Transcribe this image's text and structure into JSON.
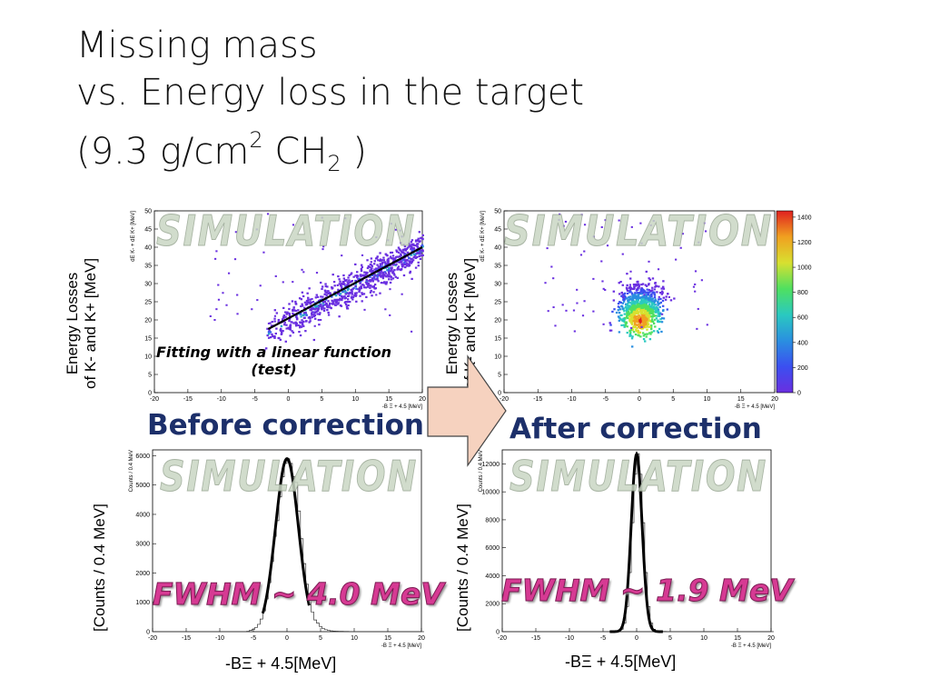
{
  "title": {
    "line1": "Missing mass",
    "line2": "vs. Energy loss in the target",
    "line3_pre": "(9.3 g/cm",
    "line3_sup": "2",
    "line3_mid": " CH",
    "line3_sub": "2",
    "line3_post": " )"
  },
  "labels": {
    "energy_losses_line1": "Energy Losses",
    "energy_losses_line2": "of K- and K+ [MeV]",
    "counts": "[Counts / 0.4 MeV]",
    "before": "Before correction",
    "after": "After correction",
    "fit_line1": "Fitting with a linear function",
    "fit_line2": "(test)",
    "fwhm_before": "FWHM ~ 4.0 MeV",
    "fwhm_after": "FWHM ~ 1.9 MeV",
    "bottom_xlabel_left": "-BΞ + 4.5[MeV]",
    "bottom_xlabel_right": "-BΞ + 4.5[MeV]",
    "watermark": "SIMULATION",
    "plot_ylabel_top": "dE K- + dE K+ [MeV]",
    "plot_ylabel_bottom": "Counts / 0.4 MeV",
    "plot_xlabel": "-B Ξ + 4.5 [MeV]"
  },
  "colors": {
    "before_after_text": "#1c2f6a",
    "fwhm_text": "#d63a93",
    "arrow_fill": "#f6d2bf",
    "scatter_main": "#6a2fe0",
    "fit_line": "#000000"
  },
  "chart_data": [
    {
      "name": "top-left",
      "type": "heatmap",
      "title": "",
      "xlabel": "-B Ξ + 4.5 [MeV]",
      "ylabel": "dE K- + dE K+ [MeV]",
      "xlim": [
        -20,
        20
      ],
      "ylim": [
        0,
        50
      ],
      "xticks": [
        -20,
        -15,
        -10,
        -5,
        0,
        5,
        10,
        15,
        20
      ],
      "yticks": [
        0,
        5,
        10,
        15,
        20,
        25,
        30,
        35,
        40,
        45,
        50
      ],
      "band": {
        "x_start": -3,
        "y_start": 17,
        "x_end": 20,
        "y_end": 40
      },
      "fit_line": {
        "x1": -3,
        "y1": 17.5,
        "x2": 20,
        "y2": 40
      }
    },
    {
      "name": "top-right",
      "type": "heatmap",
      "title": "",
      "xlabel": "-B Ξ + 4.5 [MeV]",
      "ylabel": "dE K- + dE K+ [MeV]",
      "xlim": [
        -20,
        20
      ],
      "ylim": [
        0,
        50
      ],
      "xticks": [
        -20,
        -15,
        -10,
        -5,
        0,
        5,
        10,
        15,
        20
      ],
      "yticks": [
        0,
        5,
        10,
        15,
        20,
        25,
        30,
        35,
        40,
        45,
        50
      ],
      "peak": {
        "x": 0,
        "y": 20
      },
      "colorbar": {
        "ticks": [
          0,
          200,
          400,
          600,
          800,
          1000,
          1200,
          1400
        ],
        "max": 1450
      }
    },
    {
      "name": "bottom-left",
      "type": "line",
      "title": "",
      "xlabel": "-B Ξ + 4.5 [MeV]",
      "ylabel": "Counts / 0.4 MeV",
      "xlim": [
        -20,
        20
      ],
      "ylim": [
        0,
        6200
      ],
      "xticks": [
        -20,
        -15,
        -10,
        -5,
        0,
        5,
        10,
        15,
        20
      ],
      "yticks": [
        0,
        1000,
        2000,
        3000,
        4000,
        5000,
        6000
      ],
      "peak": {
        "x": 0,
        "y": 5900,
        "fwhm": 4.0
      }
    },
    {
      "name": "bottom-right",
      "type": "line",
      "title": "",
      "xlabel": "-B Ξ + 4.5 [MeV]",
      "ylabel": "Counts / 0.4 MeV",
      "xlim": [
        -20,
        20
      ],
      "ylim": [
        0,
        13000
      ],
      "xticks": [
        -20,
        -15,
        -10,
        -5,
        0,
        5,
        10,
        15,
        20
      ],
      "yticks": [
        0,
        2000,
        4000,
        6000,
        8000,
        10000,
        12000
      ],
      "peak": {
        "x": 0,
        "y": 12700,
        "fwhm": 1.9
      }
    }
  ]
}
